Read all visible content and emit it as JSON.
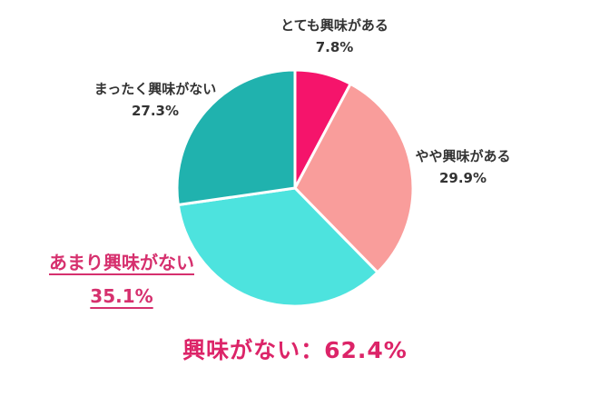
{
  "chart_data": {
    "type": "pie",
    "title": "",
    "start_angle_deg": -90,
    "direction": "clockwise",
    "legend_position": "outside-labels",
    "categories": [
      "とても興味がある",
      "やや興味がある",
      "あまり興味がない",
      "まったく興味がない"
    ],
    "values": [
      7.8,
      29.9,
      35.1,
      27.3
    ],
    "slices": [
      {
        "label": "とても興味がある",
        "value": 7.8,
        "display": "7.8%",
        "color": "#F5146B",
        "emphasis": false
      },
      {
        "label": "やや興味がある",
        "value": 29.9,
        "display": "29.9%",
        "color": "#F99D9B",
        "emphasis": false
      },
      {
        "label": "あまり興味がない",
        "value": 35.1,
        "display": "35.1%",
        "color": "#4DE3DE",
        "emphasis": true
      },
      {
        "label": "まったく興味がない",
        "value": 27.3,
        "display": "27.3%",
        "color": "#20B2AE",
        "emphasis": false
      }
    ],
    "annotation": {
      "text": "興味がない：62.4%",
      "color": "#DC2468"
    }
  },
  "styles": {
    "label_color": "#333333",
    "emphasis_color": "#D6306E",
    "slice_gap_color": "#ffffff",
    "background": "#ffffff"
  }
}
